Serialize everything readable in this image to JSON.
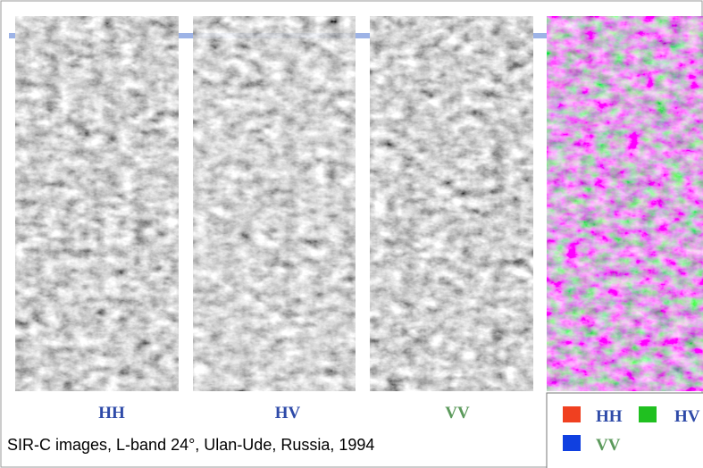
{
  "panels": [
    {
      "label": "HH",
      "color": "#2e4aa8"
    },
    {
      "label": "HV",
      "color": "#2e4aa8"
    },
    {
      "label": "VV",
      "color": "#5c9a5c"
    }
  ],
  "legend": [
    {
      "label": "HH",
      "swatch": "#f04020",
      "color": "#2e4aa8"
    },
    {
      "label": "HV",
      "swatch": "#20c020",
      "color": "#2e4aa8"
    },
    {
      "label": "VV",
      "swatch": "#1040e0",
      "color": "#5c9a5c"
    }
  ],
  "caption": "SIR-C images, L-band 24°, Ulan-Ude, Russia, 1994"
}
